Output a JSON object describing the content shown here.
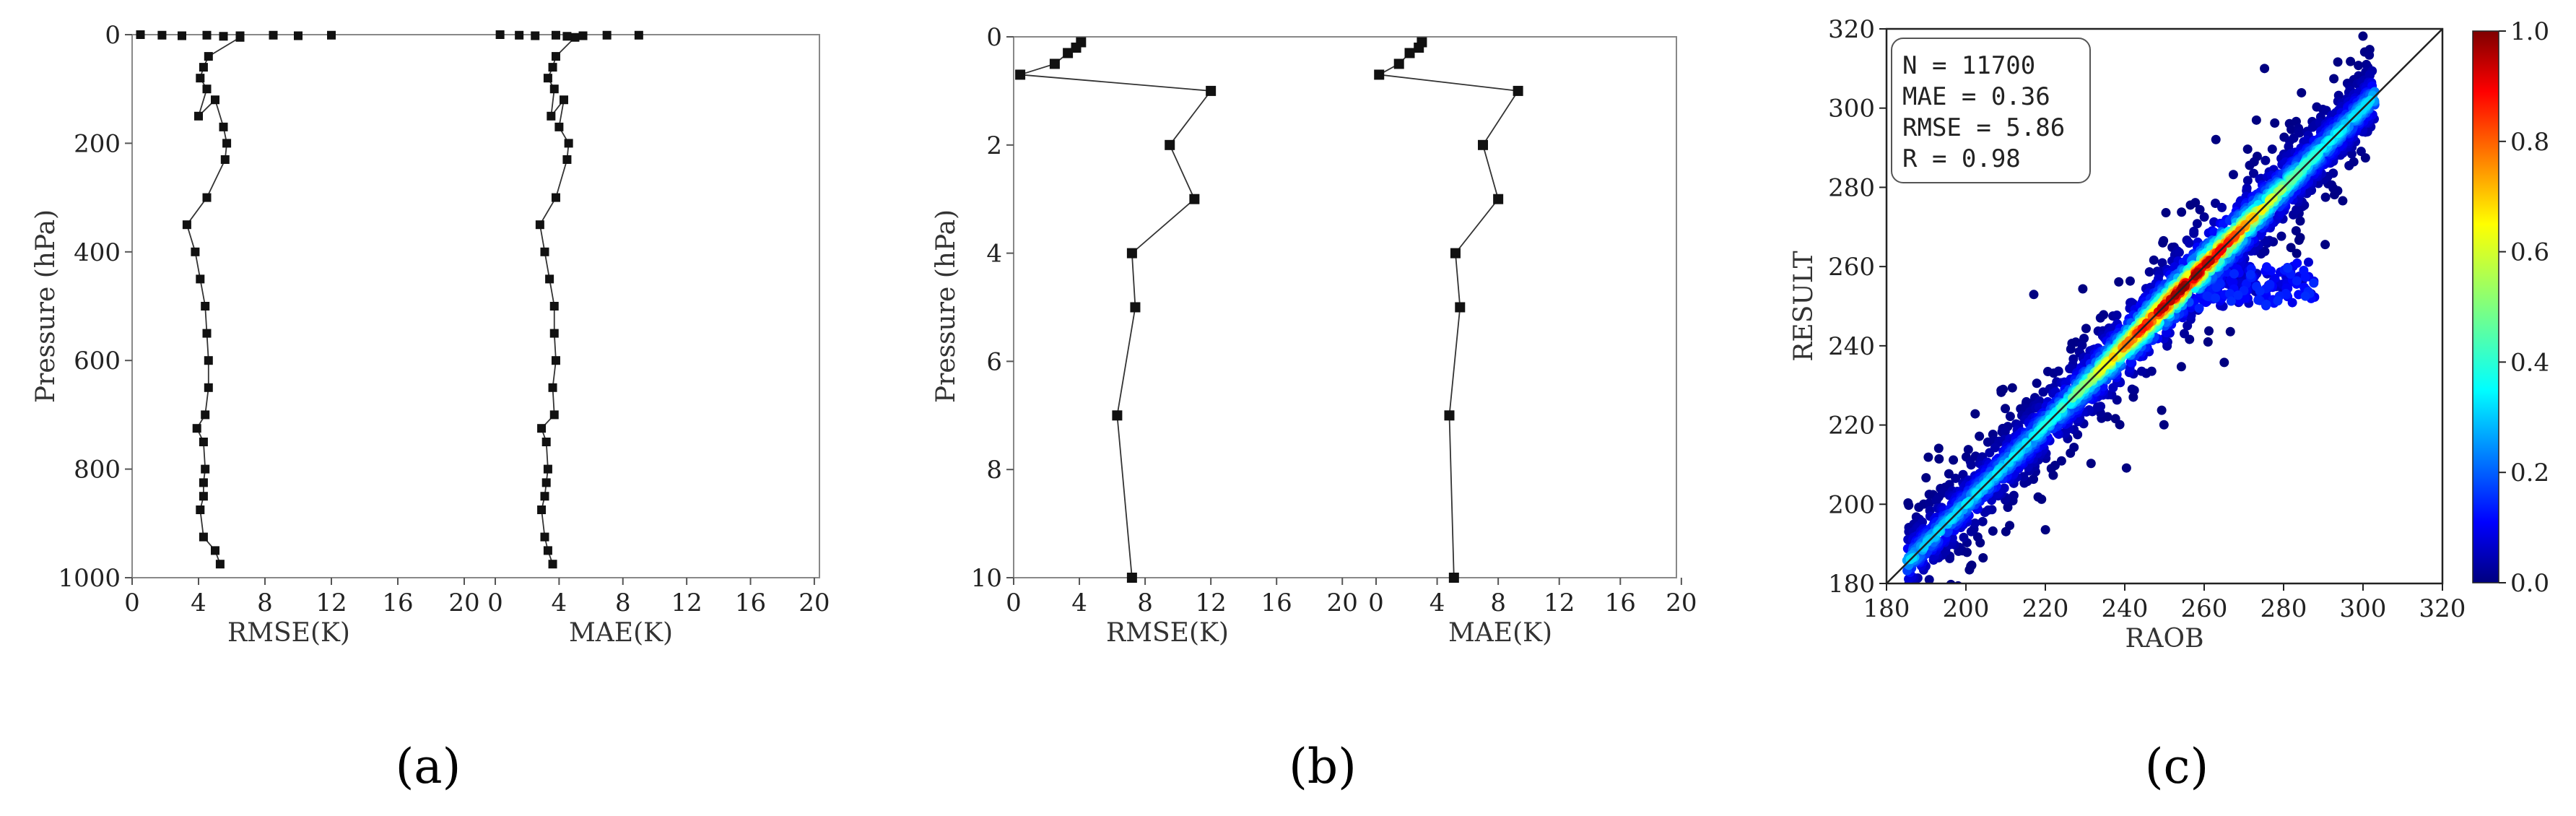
{
  "chart_data": [
    {
      "panel": "a",
      "type": "line",
      "ylabel": "Pressure (hPa)",
      "ylim": [
        1000,
        0
      ],
      "yticks": [
        "0",
        "200",
        "400",
        "600",
        "800",
        "1000"
      ],
      "subplots": [
        {
          "xlabel": "RMSE(K)",
          "xlim": [
            0,
            21
          ],
          "xticks": [
            "0",
            "4",
            "8",
            "12",
            "16",
            "20"
          ],
          "x": [
            6.5,
            4.6,
            4.3,
            4.1,
            4.5,
            4.0,
            5.0,
            5.5,
            5.7,
            5.6,
            4.5,
            3.3,
            3.8,
            4.1,
            4.4,
            4.5,
            4.6,
            4.6,
            4.4,
            3.9,
            4.3,
            4.4,
            4.3,
            4.3,
            4.1,
            4.3,
            5.0,
            5.3
          ],
          "y": [
            5,
            40,
            60,
            80,
            100,
            150,
            120,
            170,
            200,
            230,
            300,
            350,
            400,
            450,
            500,
            550,
            600,
            650,
            700,
            725,
            750,
            800,
            825,
            850,
            875,
            925,
            950,
            975
          ],
          "top_extras_x": [
            0.5,
            1.8,
            3.0,
            4.5,
            5.5,
            6.5,
            8.5,
            10.0,
            12.0
          ],
          "top_extras_y": [
            0,
            1,
            2,
            1,
            3,
            2,
            1,
            2,
            1
          ]
        },
        {
          "xlabel": "MAE(K)",
          "xlim": [
            0,
            21
          ],
          "xticks": [
            "0",
            "4",
            "8",
            "12",
            "16",
            "20"
          ],
          "x": [
            5.0,
            3.8,
            3.6,
            3.3,
            3.7,
            3.5,
            4.3,
            4.0,
            4.6,
            4.5,
            3.8,
            2.8,
            3.1,
            3.4,
            3.7,
            3.7,
            3.8,
            3.6,
            3.7,
            2.9,
            3.2,
            3.3,
            3.2,
            3.1,
            2.9,
            3.1,
            3.3,
            3.6
          ],
          "y": [
            5,
            40,
            60,
            80,
            100,
            150,
            120,
            170,
            200,
            230,
            300,
            350,
            400,
            450,
            500,
            550,
            600,
            650,
            700,
            725,
            750,
            800,
            825,
            850,
            875,
            925,
            950,
            975
          ],
          "top_extras_x": [
            0.3,
            1.5,
            2.5,
            3.8,
            4.5,
            5.5,
            7.0,
            9.0
          ],
          "top_extras_y": [
            0,
            1,
            2,
            1,
            3,
            2,
            1,
            1
          ]
        }
      ]
    },
    {
      "panel": "b",
      "type": "line",
      "ylabel": "Pressure (hPa)",
      "ylim": [
        10,
        0
      ],
      "yticks": [
        "0",
        "2",
        "4",
        "6",
        "8",
        "10"
      ],
      "subplots": [
        {
          "xlabel": "RMSE(K)",
          "xlim": [
            0,
            21
          ],
          "xticks": [
            "0",
            "4",
            "8",
            "12",
            "16",
            "20"
          ],
          "x": [
            4.1,
            3.8,
            3.3,
            2.5,
            0.4,
            12.0,
            9.5,
            11.0,
            7.2,
            7.4,
            6.3,
            7.2
          ],
          "y": [
            0.1,
            0.2,
            0.3,
            0.5,
            0.7,
            1.0,
            2.0,
            3.0,
            4.0,
            5.0,
            7.0,
            10.0
          ]
        },
        {
          "xlabel": "MAE(K)",
          "xlim": [
            0,
            21
          ],
          "xticks": [
            "0",
            "4",
            "8",
            "12",
            "16",
            "20"
          ],
          "x": [
            3.0,
            2.8,
            2.2,
            1.5,
            0.2,
            9.3,
            7.0,
            8.0,
            5.2,
            5.5,
            4.8,
            5.1
          ],
          "y": [
            0.1,
            0.2,
            0.3,
            0.5,
            0.7,
            1.0,
            2.0,
            3.0,
            4.0,
            5.0,
            7.0,
            10.0
          ]
        }
      ]
    },
    {
      "panel": "c",
      "type": "scatter",
      "xlabel": "RAOB",
      "ylabel": "RESULT",
      "xlim": [
        180,
        320
      ],
      "ylim": [
        180,
        320
      ],
      "xticks": [
        "180",
        "200",
        "220",
        "240",
        "260",
        "280",
        "300",
        "320"
      ],
      "yticks": [
        "180",
        "200",
        "220",
        "240",
        "260",
        "280",
        "300",
        "320"
      ],
      "stats": [
        "N = 11700",
        "MAE = 0.36",
        "RMSE = 5.86",
        "R = 0.98"
      ],
      "colorbar": {
        "range": [
          0.0,
          1.0
        ],
        "ticks": [
          "0.0",
          "0.2",
          "0.4",
          "0.6",
          "0.8",
          "1.0"
        ],
        "colormap": "jet"
      }
    }
  ],
  "panel_labels": [
    "(a)",
    "(b)",
    "(c)"
  ]
}
